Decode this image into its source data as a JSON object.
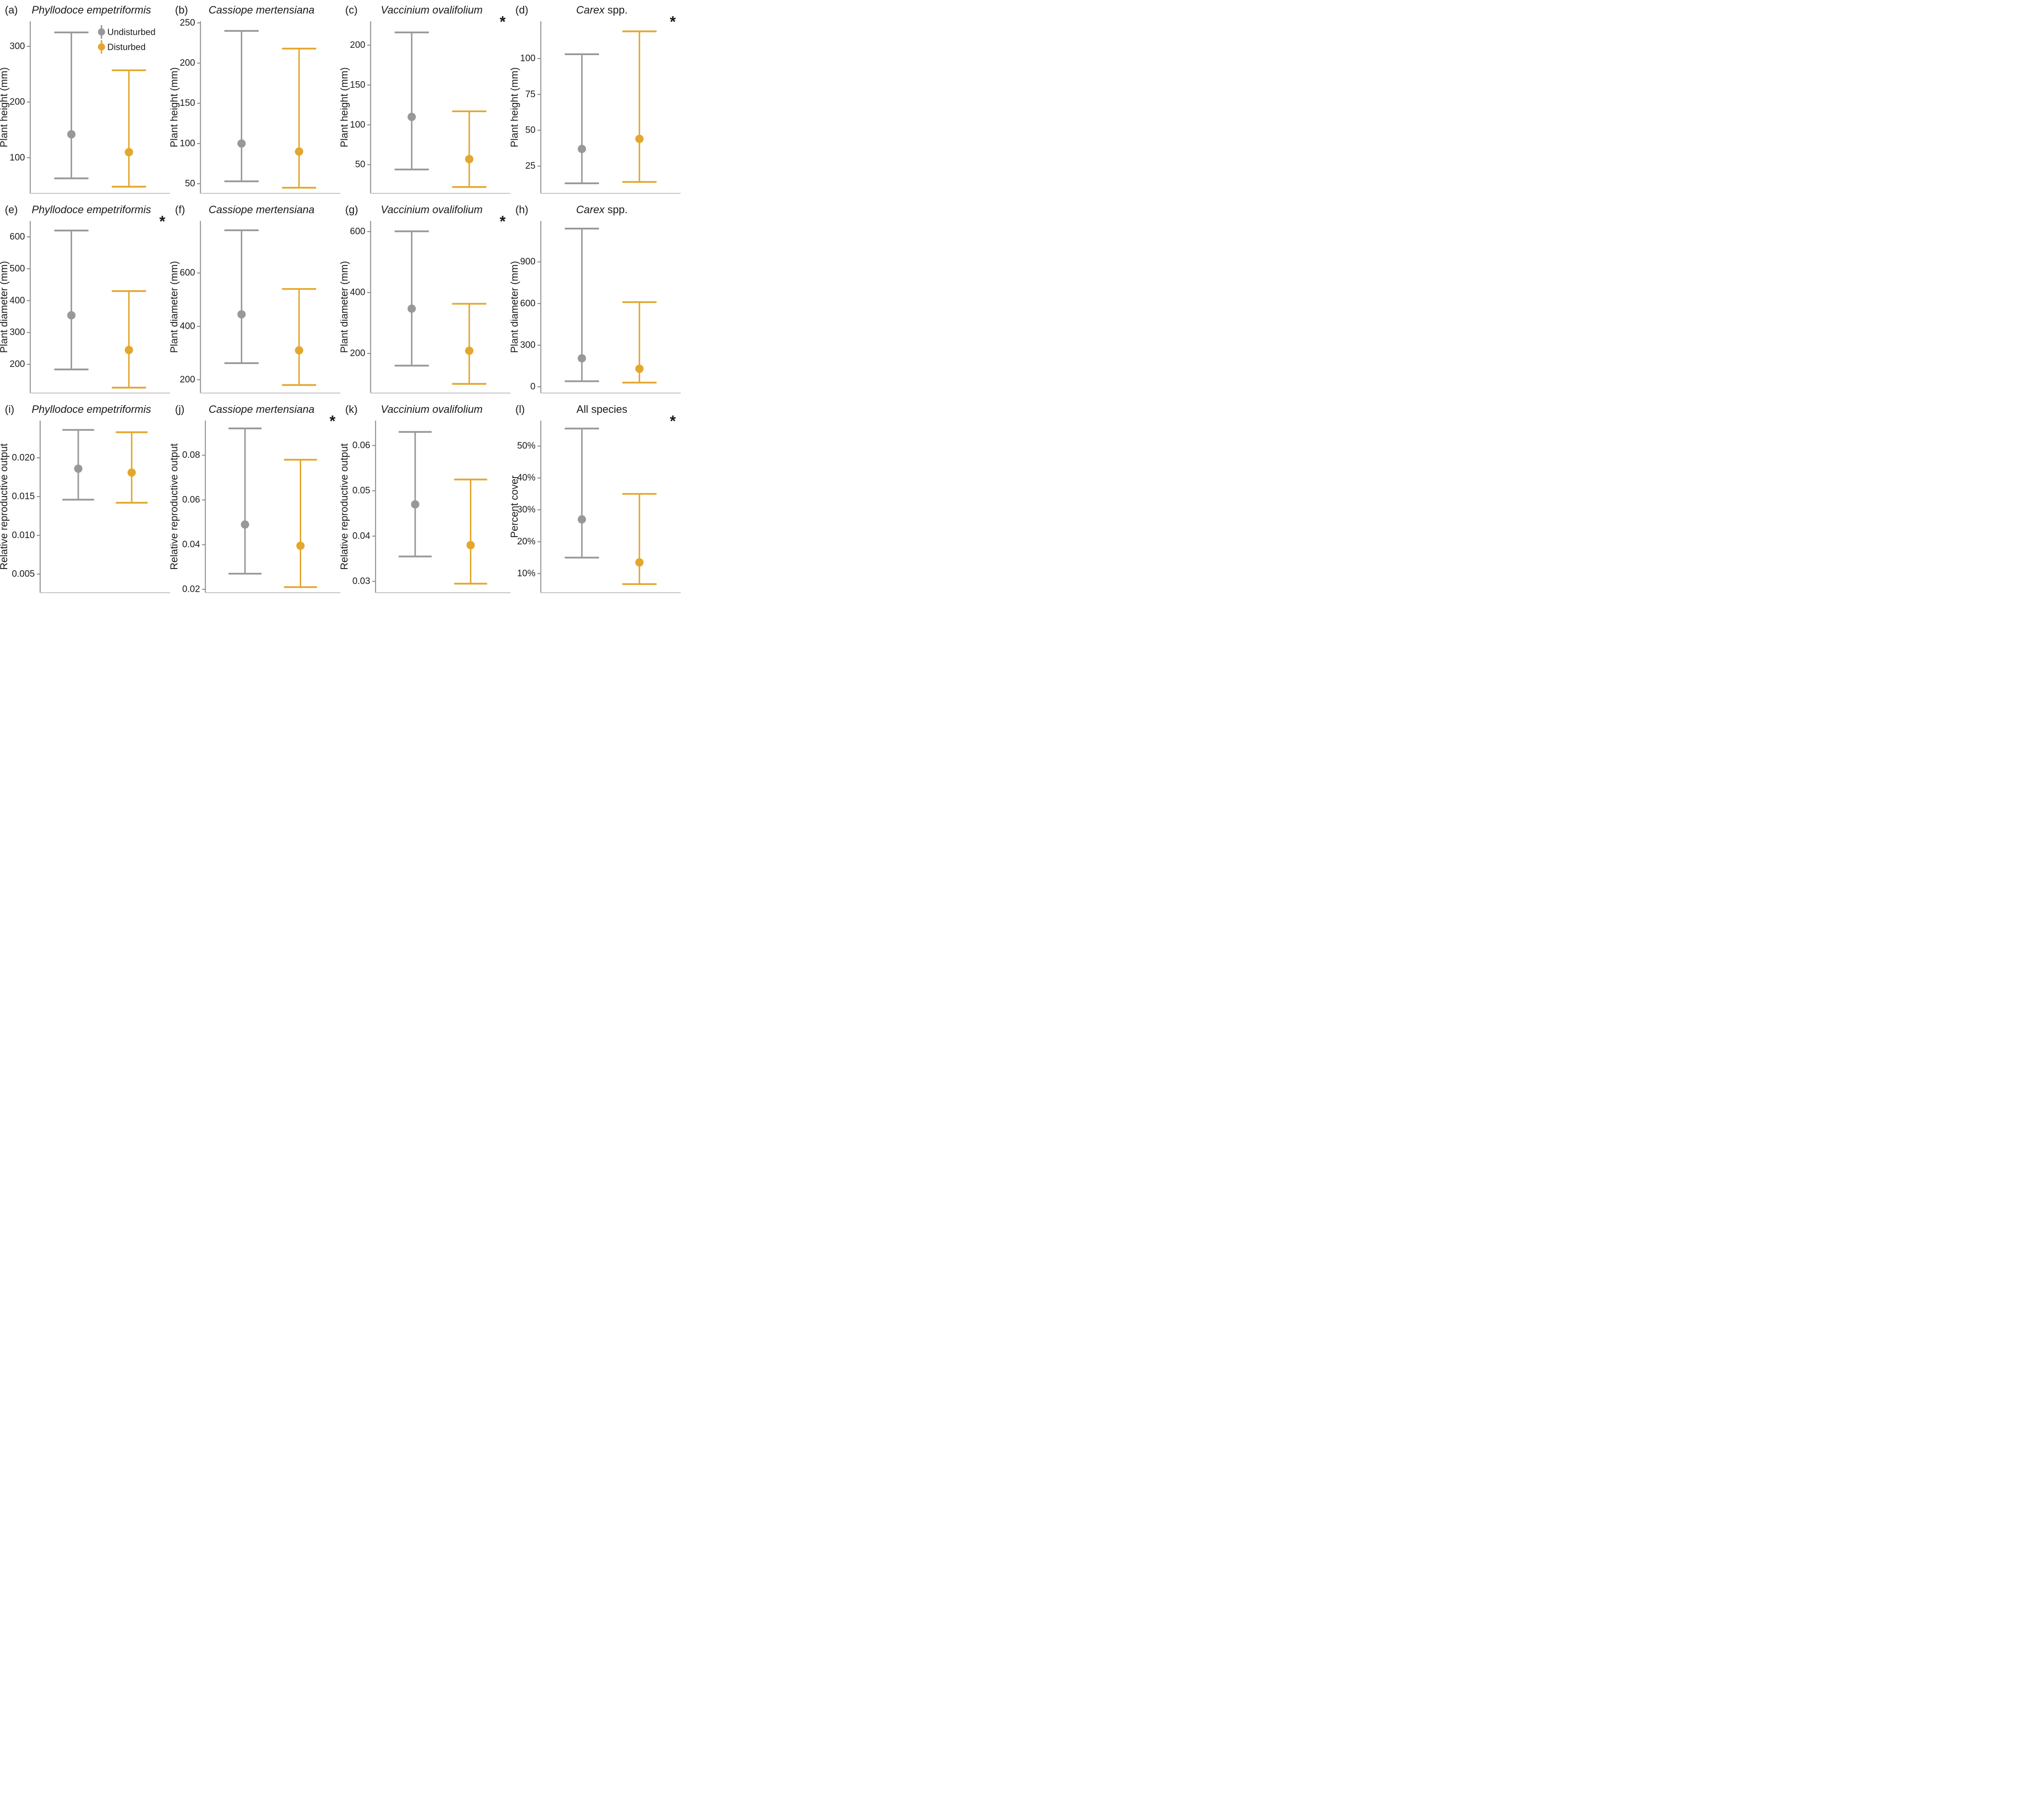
{
  "significance_marker": "*",
  "colors": {
    "undisturbed": "#989898",
    "disturbed": "#E3A72E",
    "axis_left": "#8C8C8C",
    "axis_bottom": "#C6C6C6",
    "text": "#1A1A1A"
  },
  "legend": {
    "items": [
      {
        "label": "Undisturbed",
        "color": "#989898"
      },
      {
        "label": "Disturbed",
        "color": "#E3A72E"
      }
    ]
  },
  "chart_data": [
    {
      "type": "pointrange",
      "label": "(a)",
      "title_italic": "Phyllodoce empetriformis",
      "title_regular": "",
      "significant": false,
      "show_legend": true,
      "ylabel": "Plant height (mm)",
      "ylim": [
        36,
        345
      ],
      "tick_values": [
        100,
        200,
        300
      ],
      "tick_labels": [
        "100",
        "200",
        "300"
      ],
      "series": [
        {
          "name": "Undisturbed",
          "mean": 142,
          "lo": 63,
          "hi": 325
        },
        {
          "name": "Disturbed",
          "mean": 110,
          "lo": 48,
          "hi": 257
        }
      ]
    },
    {
      "type": "pointrange",
      "label": "(b)",
      "title_italic": "Cassiope mertensiana",
      "title_regular": "",
      "significant": false,
      "show_legend": false,
      "ylabel": "Plant height (mm)",
      "ylim": [
        38,
        252
      ],
      "tick_values": [
        50,
        100,
        150,
        200,
        250
      ],
      "tick_labels": [
        "50",
        "100",
        "150",
        "200",
        "250"
      ],
      "series": [
        {
          "name": "Undisturbed",
          "mean": 100,
          "lo": 53,
          "hi": 240
        },
        {
          "name": "Disturbed",
          "mean": 90,
          "lo": 45,
          "hi": 218
        }
      ]
    },
    {
      "type": "pointrange",
      "label": "(c)",
      "title_italic": "Vaccinium ovalifolium",
      "title_regular": "",
      "significant": true,
      "show_legend": false,
      "ylabel": "Plant height (mm)",
      "ylim": [
        14,
        230
      ],
      "tick_values": [
        50,
        100,
        150,
        200
      ],
      "tick_labels": [
        "50",
        "100",
        "150",
        "200"
      ],
      "series": [
        {
          "name": "Undisturbed",
          "mean": 110,
          "lo": 44,
          "hi": 216
        },
        {
          "name": "Disturbed",
          "mean": 57,
          "lo": 22,
          "hi": 117
        }
      ]
    },
    {
      "type": "pointrange",
      "label": "(d)",
      "title_italic": "Carex",
      "title_regular": " spp.",
      "significant": true,
      "show_legend": false,
      "ylabel": "Plant height (mm)",
      "ylim": [
        6,
        126
      ],
      "tick_values": [
        25,
        50,
        75,
        100
      ],
      "tick_labels": [
        "25",
        "50",
        "75",
        "100"
      ],
      "series": [
        {
          "name": "Undisturbed",
          "mean": 37,
          "lo": 13,
          "hi": 103
        },
        {
          "name": "Disturbed",
          "mean": 44,
          "lo": 14,
          "hi": 119
        }
      ]
    },
    {
      "type": "pointrange",
      "label": "(e)",
      "title_italic": "Phyllodoce empetriformis",
      "title_regular": "",
      "significant": true,
      "show_legend": false,
      "ylabel": "Plant diameter (mm)",
      "ylim": [
        110,
        650
      ],
      "tick_values": [
        200,
        300,
        400,
        500,
        600
      ],
      "tick_labels": [
        "200",
        "300",
        "400",
        "500",
        "600"
      ],
      "series": [
        {
          "name": "Undisturbed",
          "mean": 354,
          "lo": 184,
          "hi": 620
        },
        {
          "name": "Disturbed",
          "mean": 245,
          "lo": 127,
          "hi": 430
        }
      ]
    },
    {
      "type": "pointrange",
      "label": "(f)",
      "title_italic": "Cassiope mertensiana",
      "title_regular": "",
      "significant": false,
      "show_legend": false,
      "ylabel": "Plant diameter (mm)",
      "ylim": [
        150,
        795
      ],
      "tick_values": [
        200,
        400,
        600
      ],
      "tick_labels": [
        "200",
        "400",
        "600"
      ],
      "series": [
        {
          "name": "Undisturbed",
          "mean": 445,
          "lo": 262,
          "hi": 760
        },
        {
          "name": "Disturbed",
          "mean": 310,
          "lo": 180,
          "hi": 540
        }
      ]
    },
    {
      "type": "pointrange",
      "label": "(g)",
      "title_italic": "Vaccinium ovalifolium",
      "title_regular": "",
      "significant": true,
      "show_legend": false,
      "ylabel": "Plant diameter (mm)",
      "ylim": [
        70,
        635
      ],
      "tick_values": [
        200,
        400,
        600
      ],
      "tick_labels": [
        "200",
        "400",
        "600"
      ],
      "series": [
        {
          "name": "Undisturbed",
          "mean": 347,
          "lo": 160,
          "hi": 601
        },
        {
          "name": "Disturbed",
          "mean": 209,
          "lo": 100,
          "hi": 363
        }
      ]
    },
    {
      "type": "pointrange",
      "label": "(h)",
      "title_italic": "Carex",
      "title_regular": " spp.",
      "significant": false,
      "show_legend": false,
      "ylabel": "Plant diameter (mm)",
      "ylim": [
        -45,
        1195
      ],
      "tick_values": [
        0,
        300,
        600,
        900
      ],
      "tick_labels": [
        "0",
        "300",
        "600",
        "900"
      ],
      "series": [
        {
          "name": "Undisturbed",
          "mean": 205,
          "lo": 40,
          "hi": 1140
        },
        {
          "name": "Disturbed",
          "mean": 130,
          "lo": 30,
          "hi": 610
        }
      ]
    },
    {
      "type": "pointrange",
      "label": "(i)",
      "title_italic": "Phyllodoce empetriformis",
      "title_regular": "",
      "significant": false,
      "show_legend": false,
      "ylabel": "Relative reproductive output",
      "ylim": [
        0.0026,
        0.0248
      ],
      "tick_values": [
        0.005,
        0.01,
        0.015,
        0.02
      ],
      "tick_labels": [
        "0.005",
        "0.010",
        "0.015",
        "0.020"
      ],
      "series": [
        {
          "name": "Undisturbed",
          "mean": 0.0186,
          "lo": 0.0146,
          "hi": 0.0236
        },
        {
          "name": "Disturbed",
          "mean": 0.0181,
          "lo": 0.0142,
          "hi": 0.0233
        }
      ]
    },
    {
      "type": "pointrange",
      "label": "(j)",
      "title_italic": "Cassiope mertensiana",
      "title_regular": "",
      "significant": true,
      "show_legend": false,
      "ylabel": "Relative reproductive output",
      "ylim": [
        0.0185,
        0.0955
      ],
      "tick_values": [
        0.02,
        0.04,
        0.06,
        0.08
      ],
      "tick_labels": [
        "0.02",
        "0.04",
        "0.06",
        "0.08"
      ],
      "series": [
        {
          "name": "Undisturbed",
          "mean": 0.049,
          "lo": 0.027,
          "hi": 0.092
        },
        {
          "name": "Disturbed",
          "mean": 0.0395,
          "lo": 0.021,
          "hi": 0.078
        }
      ]
    },
    {
      "type": "pointrange",
      "label": "(k)",
      "title_italic": "Vaccinium ovalifolium",
      "title_regular": "",
      "significant": false,
      "show_legend": false,
      "ylabel": "Relative reproductive output",
      "ylim": [
        0.0275,
        0.0655
      ],
      "tick_values": [
        0.03,
        0.04,
        0.05,
        0.06
      ],
      "tick_labels": [
        "0.03",
        "0.04",
        "0.05",
        "0.06"
      ],
      "series": [
        {
          "name": "Undisturbed",
          "mean": 0.047,
          "lo": 0.0355,
          "hi": 0.063
        },
        {
          "name": "Disturbed",
          "mean": 0.038,
          "lo": 0.0295,
          "hi": 0.0525
        }
      ]
    },
    {
      "type": "pointrange",
      "label": "(l)",
      "title_italic": "",
      "title_regular": "All species",
      "significant": true,
      "show_legend": false,
      "ylabel": "Percent cover",
      "ylim": [
        4,
        58
      ],
      "tick_values": [
        10,
        20,
        30,
        40,
        50
      ],
      "tick_labels": [
        "10%",
        "20%",
        "30%",
        "40%",
        "50%"
      ],
      "series": [
        {
          "name": "Undisturbed",
          "mean": 27,
          "lo": 15,
          "hi": 55.5
        },
        {
          "name": "Disturbed",
          "mean": 13.5,
          "lo": 6.7,
          "hi": 35
        }
      ]
    }
  ]
}
